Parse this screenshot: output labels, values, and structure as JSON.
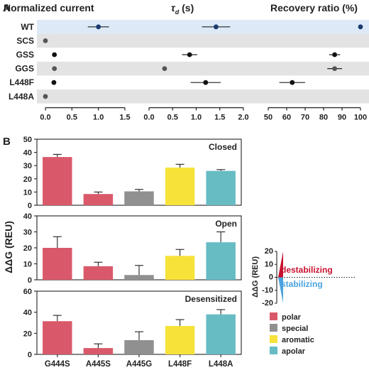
{
  "panel_letters": {
    "a": "A",
    "b": "B"
  },
  "chart_data": [
    {
      "type": "scatter",
      "panel": "A",
      "title": "Normalized current",
      "rows": [
        "WT",
        "SCS",
        "GSS",
        "GGS",
        "L448F",
        "L448A"
      ],
      "highlight_row": "WT",
      "xlim": [
        0,
        1.5
      ],
      "ticks": [
        "0.0",
        "0.5",
        "1.0",
        "1.5"
      ],
      "points": [
        {
          "row": "WT",
          "x": 1.0,
          "err": 0.2,
          "color": "#1a3a6e"
        },
        {
          "row": "SCS",
          "x": 0.0,
          "err": 0,
          "color": "#555555"
        },
        {
          "row": "GSS",
          "x": 0.17,
          "err": 0,
          "color": "#111111"
        },
        {
          "row": "GGS",
          "x": 0.17,
          "err": 0,
          "color": "#555555"
        },
        {
          "row": "L448F",
          "x": 0.16,
          "err": 0.04,
          "color": "#111111"
        },
        {
          "row": "L448A",
          "x": 0.0,
          "err": 0,
          "color": "#555555"
        }
      ]
    },
    {
      "type": "scatter",
      "panel": "A",
      "title_symbol": "τ",
      "title_sub": "d",
      "title_rest": " (s)",
      "rows": [
        "WT",
        "SCS",
        "GSS",
        "GGS",
        "L448F",
        "L448A"
      ],
      "xlim": [
        0,
        2.0
      ],
      "ticks": [
        "0.0",
        "0.5",
        "1.0",
        "1.5",
        "2.0"
      ],
      "points": [
        {
          "row": "WT",
          "x": 1.42,
          "err": 0.3,
          "color": "#1a3a6e"
        },
        {
          "row": "GSS",
          "x": 0.86,
          "err": 0.16,
          "color": "#111111"
        },
        {
          "row": "GGS",
          "x": 0.33,
          "err": 0.04,
          "color": "#555555"
        },
        {
          "row": "L448F",
          "x": 1.2,
          "err": 0.32,
          "color": "#111111"
        }
      ]
    },
    {
      "type": "scatter",
      "panel": "A",
      "title": "Recovery ratio (%)",
      "rows": [
        "WT",
        "SCS",
        "GSS",
        "GGS",
        "L448F",
        "L448A"
      ],
      "xlim": [
        50,
        100
      ],
      "ticks": [
        "50",
        "60",
        "70",
        "80",
        "90",
        "100"
      ],
      "points": [
        {
          "row": "WT",
          "x": 100,
          "err": 0,
          "color": "#1a3a6e"
        },
        {
          "row": "GSS",
          "x": 86,
          "err": 3,
          "color": "#111111"
        },
        {
          "row": "GGS",
          "x": 86,
          "err": 4,
          "color": "#555555"
        },
        {
          "row": "L448F",
          "x": 63,
          "err": 7,
          "color": "#111111"
        }
      ]
    },
    {
      "type": "bar",
      "panel": "B",
      "subtitle": "Closed",
      "ylabel": "ΔΔG (REU)",
      "categories": [
        "G444S",
        "A445S",
        "A445G",
        "L448F",
        "L448A"
      ],
      "values": [
        36.5,
        8.5,
        10.5,
        28.5,
        26
      ],
      "errors": [
        2,
        1.5,
        1.5,
        2.5,
        1
      ],
      "ylim": [
        0,
        50
      ],
      "ticks": [
        "0",
        "10",
        "20",
        "30",
        "40",
        "50"
      ]
    },
    {
      "type": "bar",
      "panel": "B",
      "subtitle": "Open",
      "categories": [
        "G444S",
        "A445S",
        "A445G",
        "L448F",
        "L448A"
      ],
      "values": [
        20,
        8.5,
        3,
        15,
        23.5
      ],
      "errors": [
        7,
        2.5,
        6,
        4,
        6.5
      ],
      "ylim": [
        0,
        40
      ],
      "ticks": [
        "0",
        "10",
        "20",
        "30",
        "40"
      ]
    },
    {
      "type": "bar",
      "panel": "B",
      "subtitle": "Desensitized",
      "categories": [
        "G444S",
        "A445S",
        "A445G",
        "L448F",
        "L448A"
      ],
      "values": [
        31.5,
        6,
        13.5,
        27,
        38
      ],
      "errors": [
        5.5,
        4,
        8,
        6,
        4.5
      ],
      "ylim": [
        0,
        60
      ],
      "ticks": [
        "0",
        "20",
        "40",
        "60"
      ]
    }
  ],
  "bar_colors": [
    "#d9596a",
    "#d9596a",
    "#909090",
    "#f7e23a",
    "#67bcc4"
  ],
  "scale_legend": {
    "ylabel": "ΔΔG (REU)",
    "ticks": [
      "20",
      "10",
      "0",
      "-10",
      "-20"
    ],
    "destabilizing": "destabilizing",
    "stabilizing": "stabilizing",
    "destab_color": "#c8102e",
    "stab_color": "#4aa3e0"
  },
  "legend": [
    {
      "label": "polar",
      "color": "#d9596a"
    },
    {
      "label": "special",
      "color": "#909090"
    },
    {
      "label": "aromatic",
      "color": "#f7e23a"
    },
    {
      "label": "apolar",
      "color": "#67bcc4"
    }
  ],
  "colors": {
    "highlight": "#dde9f7",
    "band": "#e3e3e3"
  }
}
